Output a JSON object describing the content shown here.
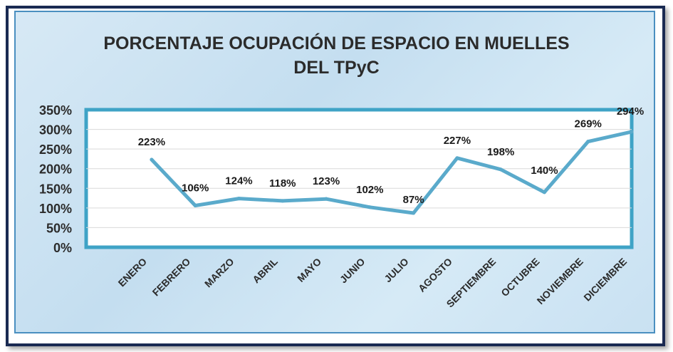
{
  "chart_data": {
    "type": "line",
    "title_line1": "PORCENTAJE OCUPACIÓN DE ESPACIO EN MUELLES",
    "title_line2": "DEL TPyC",
    "categories": [
      "ENERO",
      "FEBRERO",
      "MARZO",
      "ABRIL",
      "MAYO",
      "JUNIO",
      "JULIO",
      "AGOSTO",
      "SEPTIEMBRE",
      "OCTUBRE",
      "NOVIEMBRE",
      "DICIEMBRE"
    ],
    "values": [
      223,
      106,
      124,
      118,
      123,
      102,
      87,
      227,
      198,
      140,
      269,
      294
    ],
    "value_labels": [
      "223%",
      "106%",
      "124%",
      "118%",
      "123%",
      "102%",
      "87%",
      "227%",
      "198%",
      "140%",
      "269%",
      "294%"
    ],
    "y_ticks": [
      "0%",
      "50%",
      "100%",
      "150%",
      "200%",
      "250%",
      "300%",
      "350%"
    ],
    "ylim": [
      0,
      350
    ],
    "grid": true,
    "line_color": "#5aaacb",
    "plot_border_color": "#3fa3c6"
  }
}
